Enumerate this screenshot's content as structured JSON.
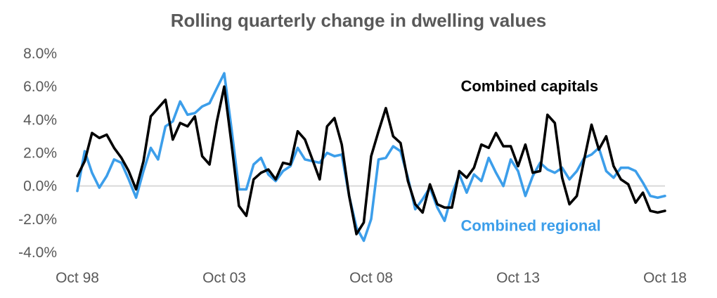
{
  "chart_data": {
    "type": "line",
    "title": "Rolling quarterly change in dwelling values",
    "xlabel": "",
    "ylabel": "",
    "x_tick_labels": [
      "Oct 98",
      "Oct 03",
      "Oct 08",
      "Oct 13",
      "Oct 18"
    ],
    "x_ticks": [
      1998.75,
      2003.75,
      2008.75,
      2013.75,
      2018.75
    ],
    "xlim": [
      1998.75,
      2018.75
    ],
    "ylim": [
      -4,
      8
    ],
    "y_ticks": [
      -4,
      -2,
      0,
      2,
      4,
      6,
      8
    ],
    "y_tick_labels": [
      "-4.0%",
      "-2.0%",
      "0.0%",
      "2.0%",
      "4.0%",
      "6.0%",
      "8.0%"
    ],
    "grid": false,
    "zero_line": true,
    "series": [
      {
        "name": "Combined capitals",
        "color": "#000000",
        "x": [
          1998.75,
          1999.0,
          1999.25,
          1999.5,
          1999.75,
          2000.0,
          2000.25,
          2000.5,
          2000.75,
          2001.0,
          2001.25,
          2001.5,
          2001.75,
          2002.0,
          2002.25,
          2002.5,
          2002.75,
          2003.0,
          2003.25,
          2003.5,
          2003.75,
          2004.0,
          2004.25,
          2004.5,
          2004.75,
          2005.0,
          2005.25,
          2005.5,
          2005.75,
          2006.0,
          2006.25,
          2006.5,
          2006.75,
          2007.0,
          2007.25,
          2007.5,
          2007.75,
          2008.0,
          2008.25,
          2008.5,
          2008.75,
          2009.0,
          2009.25,
          2009.5,
          2009.75,
          2010.0,
          2010.25,
          2010.5,
          2010.75,
          2011.0,
          2011.25,
          2011.5,
          2011.75,
          2012.0,
          2012.25,
          2012.5,
          2012.75,
          2013.0,
          2013.25,
          2013.5,
          2013.75,
          2014.0,
          2014.25,
          2014.5,
          2014.75,
          2015.0,
          2015.25,
          2015.5,
          2015.75,
          2016.0,
          2016.25,
          2016.5,
          2016.75,
          2017.0,
          2017.25,
          2017.5,
          2017.75,
          2018.0,
          2018.25,
          2018.5,
          2018.75
        ],
        "values": [
          0.6,
          1.5,
          3.2,
          2.9,
          3.1,
          2.3,
          1.7,
          0.9,
          -0.2,
          1.5,
          4.2,
          4.7,
          5.2,
          2.8,
          3.8,
          3.6,
          4.2,
          1.8,
          1.3,
          3.9,
          6.0,
          2.5,
          -1.2,
          -1.8,
          0.4,
          0.8,
          1.0,
          0.4,
          1.4,
          1.3,
          3.3,
          2.8,
          1.6,
          0.4,
          3.6,
          4.1,
          2.5,
          -0.6,
          -2.9,
          -2.2,
          1.8,
          3.3,
          4.7,
          3.0,
          2.6,
          0.3,
          -1.1,
          -1.6,
          0.1,
          -1.1,
          -1.3,
          -1.3,
          0.9,
          0.5,
          1.1,
          2.5,
          2.3,
          3.2,
          2.4,
          2.4,
          1.2,
          2.5,
          0.8,
          0.9,
          4.3,
          3.8,
          0.5,
          -1.1,
          -0.6,
          1.6,
          3.7,
          2.2,
          3.0,
          1.2,
          0.4,
          0.1,
          -1.0,
          -0.4,
          -1.5,
          -1.6,
          -1.5
        ]
      },
      {
        "name": "Combined regional",
        "color": "#3C9EEA",
        "x": [
          1998.75,
          1999.0,
          1999.25,
          1999.5,
          1999.75,
          2000.0,
          2000.25,
          2000.5,
          2000.75,
          2001.0,
          2001.25,
          2001.5,
          2001.75,
          2002.0,
          2002.25,
          2002.5,
          2002.75,
          2003.0,
          2003.25,
          2003.5,
          2003.75,
          2004.0,
          2004.25,
          2004.5,
          2004.75,
          2005.0,
          2005.25,
          2005.5,
          2005.75,
          2006.0,
          2006.25,
          2006.5,
          2006.75,
          2007.0,
          2007.25,
          2007.5,
          2007.75,
          2008.0,
          2008.25,
          2008.5,
          2008.75,
          2009.0,
          2009.25,
          2009.5,
          2009.75,
          2010.0,
          2010.25,
          2010.5,
          2010.75,
          2011.0,
          2011.25,
          2011.5,
          2011.75,
          2012.0,
          2012.25,
          2012.5,
          2012.75,
          2013.0,
          2013.25,
          2013.5,
          2013.75,
          2014.0,
          2014.25,
          2014.5,
          2014.75,
          2015.0,
          2015.25,
          2015.5,
          2015.75,
          2016.0,
          2016.25,
          2016.5,
          2016.75,
          2017.0,
          2017.25,
          2017.5,
          2017.75,
          2018.0,
          2018.25,
          2018.5,
          2018.75
        ],
        "values": [
          -0.3,
          2.1,
          0.8,
          -0.1,
          0.6,
          1.6,
          1.4,
          0.4,
          -0.7,
          0.9,
          2.3,
          1.6,
          3.6,
          3.9,
          5.1,
          4.3,
          4.4,
          4.8,
          5.0,
          5.9,
          6.8,
          3.4,
          -0.2,
          -0.2,
          1.3,
          1.7,
          0.7,
          0.3,
          0.9,
          1.2,
          2.3,
          1.6,
          1.5,
          1.4,
          2.0,
          1.8,
          1.9,
          -0.6,
          -2.5,
          -3.3,
          -2.0,
          1.6,
          1.7,
          2.4,
          2.1,
          0.5,
          -1.4,
          -0.8,
          -0.1,
          -1.3,
          -2.1,
          -0.5,
          0.7,
          -0.4,
          0.7,
          0.3,
          1.7,
          0.8,
          0.0,
          1.6,
          0.9,
          -0.6,
          0.6,
          1.4,
          1.0,
          0.8,
          1.1,
          0.4,
          0.9,
          1.7,
          1.9,
          2.3,
          0.9,
          0.5,
          1.1,
          1.1,
          0.9,
          0.2,
          -0.6,
          -0.7,
          -0.6
        ]
      }
    ],
    "annotations": [
      {
        "text": "Combined capitals",
        "x": 2011.8,
        "y": 5.7,
        "color": "#000000"
      },
      {
        "text": "Combined regional",
        "x": 2011.8,
        "y": -2.7,
        "color": "#3C9EEA"
      }
    ]
  }
}
